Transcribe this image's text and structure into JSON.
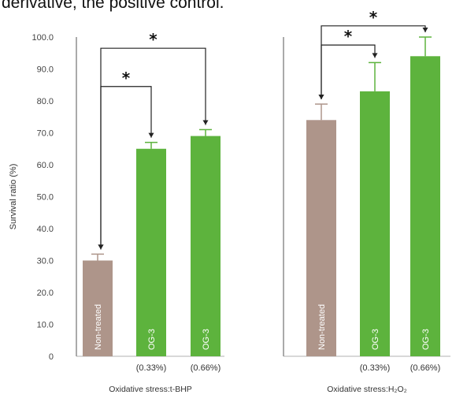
{
  "caption": "derivative, the positive control.",
  "colors": {
    "control": "#ae958a",
    "treated": "#5db33d",
    "axis": "#555555",
    "bracket": "#222222"
  },
  "chart_data": {
    "type": "bar",
    "ylabel": "Survival ratio (%)",
    "ylim": [
      0,
      100
    ],
    "yticks": [
      "0",
      "10.0",
      "20.0",
      "30.0",
      "40.0",
      "50.0",
      "60.0",
      "70.0",
      "80.0",
      "90.0",
      "100.0"
    ],
    "panels": [
      {
        "title": "Oxidative stress:t-BHP",
        "bars": [
          {
            "label": "Non-treated",
            "concentration": "",
            "value": 30.0,
            "error": 2.0,
            "group": "control"
          },
          {
            "label": "OG-3",
            "concentration": "(0.33%)",
            "value": 65.0,
            "error": 2.0,
            "group": "treated"
          },
          {
            "label": "OG-3",
            "concentration": "(0.66%)",
            "value": 69.0,
            "error": 2.0,
            "group": "treated"
          }
        ],
        "significance": [
          {
            "from": 0,
            "to": 1,
            "label": "*"
          },
          {
            "from": 0,
            "to": 2,
            "label": "*"
          }
        ]
      },
      {
        "title": "Oxidative stress:H₂O₂",
        "bars": [
          {
            "label": "Non-treated",
            "concentration": "",
            "value": 74.0,
            "error": 5.0,
            "group": "control"
          },
          {
            "label": "OG-3",
            "concentration": "(0.33%)",
            "value": 83.0,
            "error": 9.0,
            "group": "treated"
          },
          {
            "label": "OG-3",
            "concentration": "(0.66%)",
            "value": 94.0,
            "error": 6.0,
            "group": "treated"
          }
        ],
        "significance": [
          {
            "from": 0,
            "to": 1,
            "label": "*"
          },
          {
            "from": 0,
            "to": 2,
            "label": "*"
          }
        ]
      }
    ]
  }
}
